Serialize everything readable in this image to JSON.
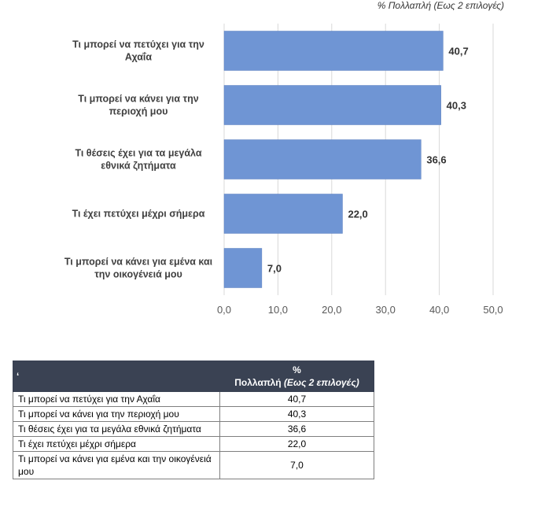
{
  "chart_data": {
    "type": "bar",
    "orientation": "horizontal",
    "series_title": "% Πολλαπλή (Εως 2 επιλογές)",
    "categories": [
      [
        "Τι μπορεί να πετύχει για την",
        "Αχαΐα"
      ],
      [
        "Τι μπορεί να κάνει για την",
        "περιοχή μου"
      ],
      [
        "Τι θέσεις έχει για τα μεγάλα",
        "εθνικά ζητήματα"
      ],
      [
        "Τι έχει πετύχει μέχρι σήμερα"
      ],
      [
        "Τι μπορεί να κάνει για εμένα και",
        "την οικογένειά μου"
      ]
    ],
    "values": [
      40.7,
      40.3,
      36.6,
      22.0,
      7.0
    ],
    "value_labels": [
      "40,7",
      "40,3",
      "36,6",
      "22,0",
      "7,0"
    ],
    "xticks": [
      "0,0",
      "10,0",
      "20,0",
      "30,0",
      "40,0",
      "50,0"
    ],
    "xlim": [
      0,
      50
    ],
    "grid": true,
    "bar_color": "#6f95d4"
  },
  "table": {
    "corner": "‘",
    "header_pct": "%",
    "header_multi": "Πολλαπλή",
    "header_note": "(Εως 2 επιλογές)",
    "rows": [
      {
        "label": "Τι μπορεί να πετύχει για την Αχαΐα",
        "value": "40,7"
      },
      {
        "label": "Τι μπορεί να κάνει για την περιοχή μου",
        "value": "40,3"
      },
      {
        "label": "Τι θέσεις έχει για τα μεγάλα εθνικά ζητήματα",
        "value": "36,6"
      },
      {
        "label": "Τι έχει πετύχει μέχρι σήμερα",
        "value": "22,0"
      },
      {
        "label": "Τι μπορεί να κάνει για εμένα και την οικογένειά μου",
        "value": "7,0"
      }
    ]
  }
}
